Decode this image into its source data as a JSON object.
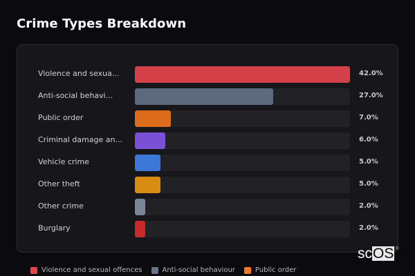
{
  "title": "Crime Types Breakdown",
  "chart_data": {
    "type": "bar",
    "orientation": "horizontal",
    "title": "Crime Types Breakdown",
    "categories": [
      "Violence and sexual offences",
      "Anti-social behaviour",
      "Public order",
      "Criminal damage and arson",
      "Vehicle crime",
      "Other theft",
      "Other crime",
      "Burglary"
    ],
    "display_labels": [
      "Violence and sexua...",
      "Anti-social behavi...",
      "Public order",
      "Criminal damage an...",
      "Vehicle crime",
      "Other theft",
      "Other crime",
      "Burglary"
    ],
    "values": [
      42.0,
      27.0,
      7.0,
      6.0,
      5.0,
      5.0,
      2.0,
      2.0
    ],
    "value_labels": [
      "42.0%",
      "27.0%",
      "7.0%",
      "6.0%",
      "5.0%",
      "5.0%",
      "2.0%",
      "2.0%"
    ],
    "colors": [
      "#d44148",
      "#5d6a7d",
      "#dc6b1c",
      "#7b4fd6",
      "#3b78d8",
      "#d88c14",
      "#7b8598",
      "#c82a2a"
    ],
    "xlabel": "",
    "ylabel": "",
    "xlim": [
      0,
      42
    ],
    "grid": false,
    "legend_position": "bottom"
  },
  "rows": [
    {
      "label": "Violence and sexua...",
      "value": "42.0%",
      "pct": 42.0,
      "color": "#d44148"
    },
    {
      "label": "Anti-social behavi...",
      "value": "27.0%",
      "pct": 27.0,
      "color": "#5d6a7d"
    },
    {
      "label": "Public order",
      "value": "7.0%",
      "pct": 7.0,
      "color": "#dc6b1c"
    },
    {
      "label": "Criminal damage an...",
      "value": "6.0%",
      "pct": 6.0,
      "color": "#7b4fd6"
    },
    {
      "label": "Vehicle crime",
      "value": "5.0%",
      "pct": 5.0,
      "color": "#3b78d8"
    },
    {
      "label": "Other theft",
      "value": "5.0%",
      "pct": 5.0,
      "color": "#d88c14"
    },
    {
      "label": "Other crime",
      "value": "2.0%",
      "pct": 2.0,
      "color": "#7b8598"
    },
    {
      "label": "Burglary",
      "value": "2.0%",
      "pct": 2.0,
      "color": "#c82a2a"
    }
  ],
  "legend": [
    {
      "label": "Violence and sexual offences",
      "color": "#e0454c"
    },
    {
      "label": "Anti-social behaviour",
      "color": "#667388"
    },
    {
      "label": "Public order",
      "color": "#ef7a22"
    }
  ],
  "watermark": {
    "prefix": "sc",
    "boxed": "OS",
    "mark": "®"
  }
}
